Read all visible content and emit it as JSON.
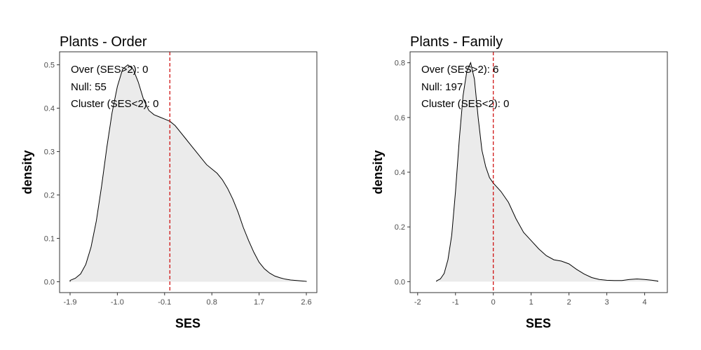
{
  "chart_data": [
    {
      "type": "area",
      "title": "Plants - Order",
      "xlabel": "SES",
      "ylabel": "density",
      "xlim": [
        -2.1,
        2.8
      ],
      "ylim": [
        -0.025,
        0.53
      ],
      "xticks": [
        -1.9,
        -1.0,
        -0.1,
        0.8,
        1.7,
        2.6
      ],
      "xtick_labels": [
        "-1.9",
        "-1.0",
        "-0.1",
        "0.8",
        "1.7",
        "2.6"
      ],
      "yticks": [
        0.0,
        0.1,
        0.2,
        0.3,
        0.4,
        0.5
      ],
      "ytick_labels": [
        "0.0",
        "0.1",
        "0.2",
        "0.3",
        "0.4",
        "0.5"
      ],
      "vline_x": 0.0,
      "vline_color": "#cc0000",
      "fill_color": "#ebebeb",
      "annotations": [
        "Over (SES>2): 0",
        "Null: 55",
        "Cluster (SES<2): 0"
      ],
      "x": [
        -1.9,
        -1.8,
        -1.7,
        -1.6,
        -1.5,
        -1.4,
        -1.3,
        -1.2,
        -1.1,
        -1.0,
        -0.9,
        -0.8,
        -0.7,
        -0.6,
        -0.5,
        -0.4,
        -0.3,
        -0.2,
        -0.1,
        0.0,
        0.1,
        0.2,
        0.3,
        0.4,
        0.5,
        0.6,
        0.7,
        0.8,
        0.9,
        1.0,
        1.1,
        1.2,
        1.3,
        1.4,
        1.5,
        1.6,
        1.7,
        1.8,
        1.9,
        2.0,
        2.1,
        2.2,
        2.3,
        2.4,
        2.5,
        2.6
      ],
      "y": [
        0.003,
        0.008,
        0.018,
        0.04,
        0.08,
        0.14,
        0.22,
        0.31,
        0.39,
        0.45,
        0.49,
        0.5,
        0.49,
        0.46,
        0.42,
        0.395,
        0.385,
        0.38,
        0.375,
        0.37,
        0.36,
        0.345,
        0.33,
        0.315,
        0.3,
        0.285,
        0.27,
        0.26,
        0.25,
        0.235,
        0.215,
        0.19,
        0.16,
        0.125,
        0.095,
        0.068,
        0.045,
        0.03,
        0.02,
        0.013,
        0.009,
        0.006,
        0.004,
        0.003,
        0.002,
        0.001
      ]
    },
    {
      "type": "area",
      "title": "Plants - Family",
      "xlabel": "SES",
      "ylabel": "density",
      "xlim": [
        -2.2,
        4.6
      ],
      "ylim": [
        -0.04,
        0.84
      ],
      "xticks": [
        -2,
        -1,
        0,
        1,
        2,
        3,
        4
      ],
      "xtick_labels": [
        "-2",
        "-1",
        "0",
        "1",
        "2",
        "3",
        "4"
      ],
      "yticks": [
        0.0,
        0.2,
        0.4,
        0.6,
        0.8
      ],
      "ytick_labels": [
        "0.0",
        "0.2",
        "0.4",
        "0.6",
        "0.8"
      ],
      "vline_x": 0.0,
      "vline_color": "#cc0000",
      "fill_color": "#ebebeb",
      "annotations": [
        "Over (SES>2): 6",
        "Null: 197",
        "Cluster (SES<2): 0"
      ],
      "x": [
        -1.5,
        -1.4,
        -1.3,
        -1.2,
        -1.1,
        -1.0,
        -0.9,
        -0.8,
        -0.7,
        -0.6,
        -0.5,
        -0.4,
        -0.3,
        -0.2,
        -0.1,
        0.0,
        0.2,
        0.4,
        0.6,
        0.8,
        1.0,
        1.2,
        1.4,
        1.6,
        1.8,
        2.0,
        2.2,
        2.4,
        2.6,
        2.8,
        3.0,
        3.2,
        3.4,
        3.6,
        3.8,
        4.0,
        4.2,
        4.35
      ],
      "y": [
        0.003,
        0.01,
        0.03,
        0.08,
        0.17,
        0.33,
        0.52,
        0.68,
        0.77,
        0.8,
        0.74,
        0.6,
        0.48,
        0.42,
        0.38,
        0.36,
        0.33,
        0.29,
        0.23,
        0.18,
        0.15,
        0.12,
        0.095,
        0.08,
        0.075,
        0.065,
        0.045,
        0.028,
        0.015,
        0.008,
        0.005,
        0.004,
        0.004,
        0.008,
        0.01,
        0.008,
        0.005,
        0.002
      ]
    }
  ]
}
